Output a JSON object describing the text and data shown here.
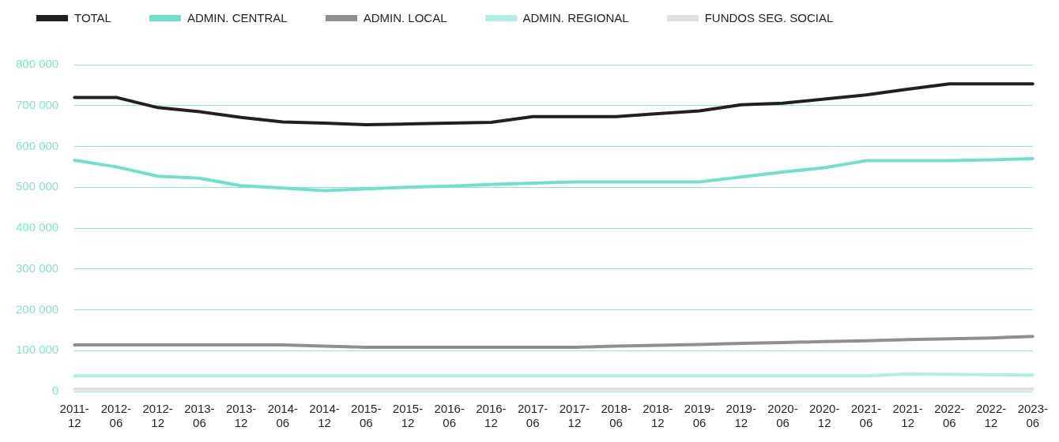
{
  "chart_data": {
    "type": "line",
    "categories": [
      "2011-12",
      "2012-06",
      "2012-12",
      "2013-06",
      "2013-12",
      "2014-06",
      "2014-12",
      "2015-06",
      "2015-12",
      "2016-06",
      "2016-12",
      "2017-06",
      "2017-12",
      "2018-06",
      "2018-12",
      "2019-06",
      "2019-12",
      "2020-06",
      "2020-12",
      "2021-06",
      "2021-12",
      "2022-06",
      "2022-12",
      "2023-06"
    ],
    "series": [
      {
        "name": "TOTAL",
        "color": "#231f20",
        "values": [
          720000,
          720000,
          695000,
          685000,
          671000,
          660000,
          657000,
          653000,
          655000,
          657000,
          659000,
          673000,
          673000,
          673000,
          680000,
          687000,
          702000,
          706000,
          716000,
          726000,
          740000,
          753000,
          753000,
          753000
        ]
      },
      {
        "name": "ADMIN. CENTRAL",
        "color": "#6ee0cc",
        "values": [
          566000,
          550000,
          527000,
          522000,
          504000,
          498000,
          492000,
          496000,
          500000,
          503000,
          507000,
          510000,
          513000,
          513000,
          513000,
          513000,
          525000,
          537000,
          548000,
          565000,
          565000,
          565000,
          567000,
          570000
        ]
      },
      {
        "name": "ADMIN. LOCAL",
        "color": "#8e8e93",
        "values": [
          114000,
          114000,
          114000,
          114000,
          114000,
          114000,
          111000,
          108000,
          108000,
          108000,
          108000,
          108000,
          108000,
          111000,
          113000,
          115000,
          118000,
          120000,
          122000,
          124000,
          127000,
          129000,
          131000,
          135000
        ]
      },
      {
        "name": "ADMIN. REGIONAL",
        "color": "#b0f0e4",
        "values": [
          38000,
          38000,
          38000,
          38000,
          38000,
          38000,
          38000,
          38000,
          38000,
          38000,
          38000,
          38000,
          38000,
          38000,
          38000,
          38000,
          38000,
          38000,
          38000,
          38000,
          43000,
          42000,
          41000,
          40000
        ]
      },
      {
        "name": "FUNDOS SEG. SOCIAL",
        "color": "#e0e0e0",
        "values": [
          6000,
          6000,
          6000,
          6000,
          6000,
          6000,
          6000,
          6000,
          6000,
          6000,
          6000,
          6000,
          6000,
          6000,
          6000,
          6000,
          6000,
          6000,
          6000,
          6000,
          6000,
          6000,
          6000,
          6000
        ]
      }
    ],
    "ylim": [
      0,
      800000
    ],
    "yticks": [
      {
        "value": 0,
        "label": "0"
      },
      {
        "value": 100000,
        "label": "100 000"
      },
      {
        "value": 200000,
        "label": "200 000"
      },
      {
        "value": 300000,
        "label": "300 000"
      },
      {
        "value": 400000,
        "label": "400 000"
      },
      {
        "value": 500000,
        "label": "500 000"
      },
      {
        "value": 600000,
        "label": "600 000"
      },
      {
        "value": 700000,
        "label": "700 000"
      },
      {
        "value": 800000,
        "label": "800 000"
      }
    ],
    "grid": "y",
    "legend": "top left",
    "marker": "none",
    "line_style": "solid"
  }
}
